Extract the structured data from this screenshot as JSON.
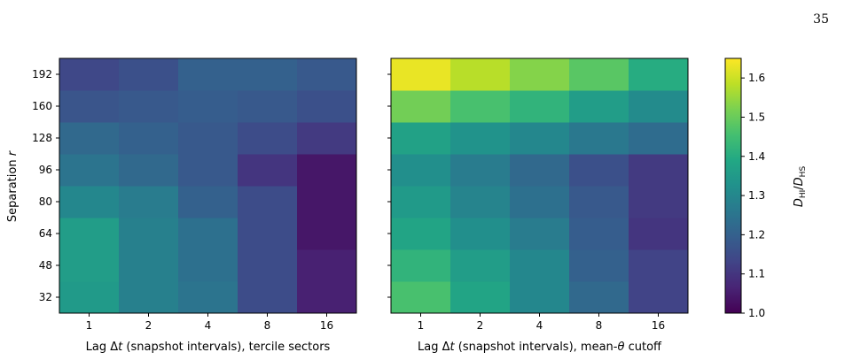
{
  "page": {
    "number": "35"
  },
  "chart_data": {
    "type": "heatmap",
    "y": {
      "label": "Separation r",
      "categories": [
        "32",
        "48",
        "64",
        "80",
        "96",
        "128",
        "160",
        "192"
      ]
    },
    "x": {
      "categories": [
        "1",
        "2",
        "4",
        "8",
        "16"
      ]
    },
    "panels": [
      {
        "xlabel": "Lag Δt (snapshot intervals), tercile sectors",
        "values": [
          [
            1.35,
            1.28,
            1.25,
            1.15,
            1.06
          ],
          [
            1.36,
            1.28,
            1.24,
            1.15,
            1.06
          ],
          [
            1.36,
            1.28,
            1.24,
            1.15,
            1.04
          ],
          [
            1.3,
            1.27,
            1.2,
            1.15,
            1.04
          ],
          [
            1.25,
            1.22,
            1.18,
            1.1,
            1.04
          ],
          [
            1.22,
            1.2,
            1.18,
            1.15,
            1.11
          ],
          [
            1.17,
            1.18,
            1.19,
            1.18,
            1.16
          ],
          [
            1.14,
            1.16,
            1.2,
            1.2,
            1.18
          ]
        ]
      },
      {
        "xlabel": "Lag Δt (snapshot intervals), mean-θ cutoff",
        "values": [
          [
            1.46,
            1.38,
            1.3,
            1.22,
            1.13
          ],
          [
            1.42,
            1.36,
            1.3,
            1.2,
            1.13
          ],
          [
            1.38,
            1.32,
            1.27,
            1.19,
            1.1
          ],
          [
            1.35,
            1.29,
            1.24,
            1.18,
            1.11
          ],
          [
            1.32,
            1.27,
            1.22,
            1.16,
            1.11
          ],
          [
            1.37,
            1.33,
            1.3,
            1.26,
            1.23
          ],
          [
            1.51,
            1.46,
            1.42,
            1.36,
            1.31
          ],
          [
            1.63,
            1.58,
            1.53,
            1.48,
            1.4
          ]
        ]
      }
    ],
    "colorbar": {
      "label": "D_HI/D_HS",
      "label_main": "D",
      "label_sub1": "HI",
      "label_sep": "/D",
      "label_sub2": "HS",
      "min": 1.0,
      "max": 1.65,
      "ticks": [
        "1.0",
        "1.1",
        "1.2",
        "1.3",
        "1.4",
        "1.5",
        "1.6"
      ],
      "colormap": "viridis"
    }
  }
}
